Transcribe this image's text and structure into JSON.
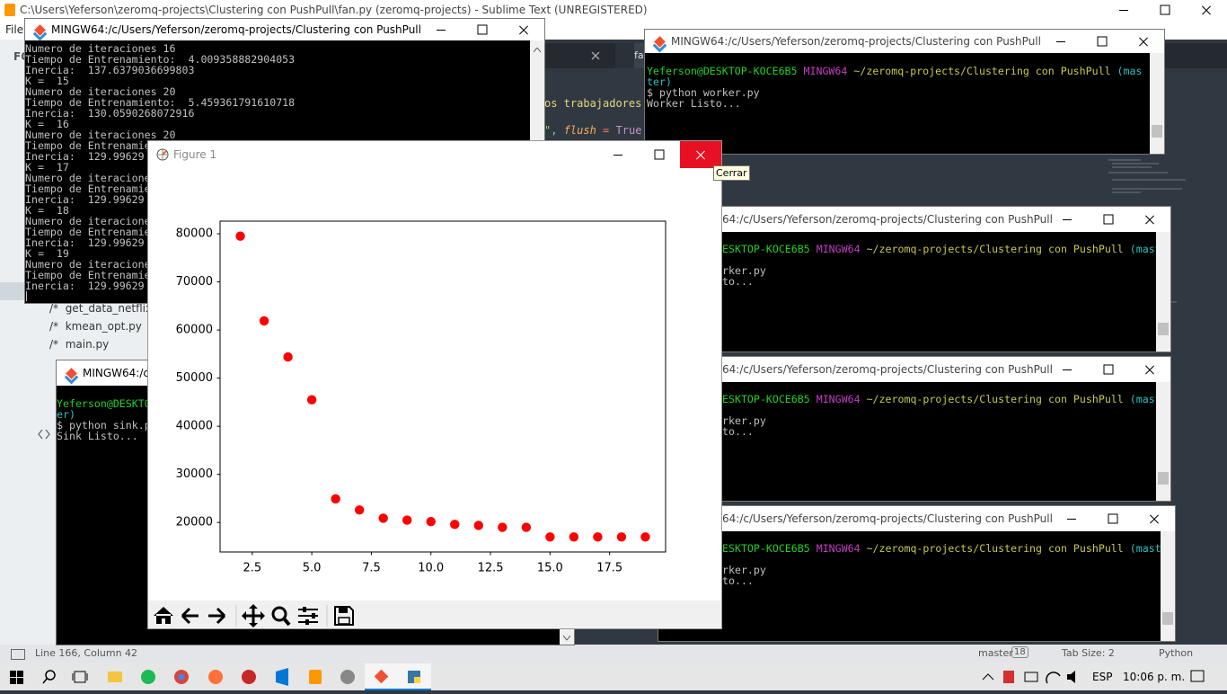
{
  "chart_data": {
    "type": "scatter",
    "x": [
      2,
      3,
      4,
      5,
      6,
      7,
      8,
      9,
      10,
      11,
      12,
      13,
      14,
      15,
      16,
      17,
      18,
      19
    ],
    "values": [
      79500,
      61900,
      54400,
      45500,
      24900,
      22600,
      20900,
      20500,
      20200,
      19600,
      19400,
      19000,
      19000,
      17000,
      17000,
      17000,
      17000,
      17000
    ],
    "color": "#ff0000",
    "xlim": [
      1.15,
      19.85
    ],
    "ylim": [
      13875,
      82625
    ],
    "xticks": [
      2.5,
      {
        "value": 5,
        "label": "5.0"
      },
      7.5,
      {
        "value": 10,
        "label": "10.0"
      },
      12.5,
      {
        "value": 15,
        "label": "15.0"
      },
      17.5
    ],
    "yticks": [
      20000,
      30000,
      40000,
      50000,
      60000,
      70000,
      80000
    ],
    "grid": false
  },
  "figure": {
    "title": "Figure 1",
    "tooltip": "Cerrar"
  },
  "sublime": {
    "title": "C:\\Users\\Yeferson\\zeromq-projects\\Clustering con PushPull\\fan.py (zeromq-projects) - Sublime Text (UNREGISTERED)",
    "menu": "File",
    "sidebar_heading": "FO",
    "tab": "fa",
    "code": {
      "text": "os trabajadores",
      "quote": "\",",
      "keyword": "flush",
      "operator": "=",
      "value": "True"
    },
    "file_marker": "/*",
    "files": [
      "get_data_netflix.p",
      "kmean_opt.py",
      "main.py"
    ],
    "status": {
      "position": "Line 166, Column 42",
      "branch": "master",
      "badge": "18",
      "tab_size": "Tab Size: 2",
      "syntax": "Python"
    }
  },
  "terminals": {
    "main": {
      "title": "MINGW64:/c/Users/Yeferson/zeromq-projects/Clustering con PushPull",
      "lines": [
        "Numero de iteraciones 16",
        "Tiempo de Entrenamiento:  4.009358882904053",
        "Inercia:  137.6379036699803",
        "K =  15",
        "Numero de iteraciones 20",
        "Tiempo de Entrenamiento:  5.459361791610718",
        "Inercia:  130.0590268072916",
        "K =  16",
        "Numero de iteraciones 20",
        "Tiempo de Entrenamie",
        "Inercia:  129.99629",
        "K =  17",
        "Numero de iteracione",
        "Tiempo de Entrenamie",
        "Inercia:  129.99629",
        "K =  18",
        "Numero de iteracione",
        "Tiempo de Entrenamie",
        "Inercia:  129.99629",
        "K =  19",
        "Numero de iteracione",
        "Tiempo de Entrenamie",
        "Inercia:  129.99629"
      ]
    },
    "worker1": {
      "title": "MINGW64:/c/Users/Yeferson/zeromq-projects/Clustering con PushPull",
      "user": "Yeferson@DESKTOP-KOCE6B5",
      "shell": "MINGW64",
      "path": "~/zeromq-projects/Clustering con PushPull",
      "branch": "(master)",
      "command": "$ python worker.py",
      "output": "Worker Listo..."
    },
    "worker2": {
      "title": "64:/c/Users/Yeferson/zeromq-projects/Clustering con PushPull",
      "user": "ESKTOP-KOCE6B5",
      "shell": "MINGW64",
      "path": "~/zeromq-projects/Clustering con PushPull",
      "branch": "(mast",
      "command": "rker.py",
      "output": "to..."
    },
    "worker3": {
      "title": "64:/c/Users/Yeferson/zeromq-projects/Clustering con PushPull",
      "user": "ESKTOP-KOCE6B5",
      "shell": "MINGW64",
      "path": "~/zeromq-projects/Clustering con PushPull",
      "branch": "(mast",
      "command": "rker.py",
      "output": "to..."
    },
    "worker4": {
      "title": "64:/c/Users/Yeferson/zeromq-projects/Clustering con PushPull",
      "user": "ESKTOP-KOCE6B5",
      "shell": "MINGW64",
      "path": "~/zeromq-projects/Clustering con PushPull",
      "branch": "(mast",
      "command": "rker.py",
      "output": "to..."
    },
    "sink": {
      "title": "MINGW64:/c/",
      "user": "Yeferson@DESKTO",
      "branch": "er)",
      "command": "$ python sink.p",
      "output": "Sink Listo..."
    }
  },
  "taskbar": {
    "language": "ESP",
    "time": "10:06 p. m."
  }
}
